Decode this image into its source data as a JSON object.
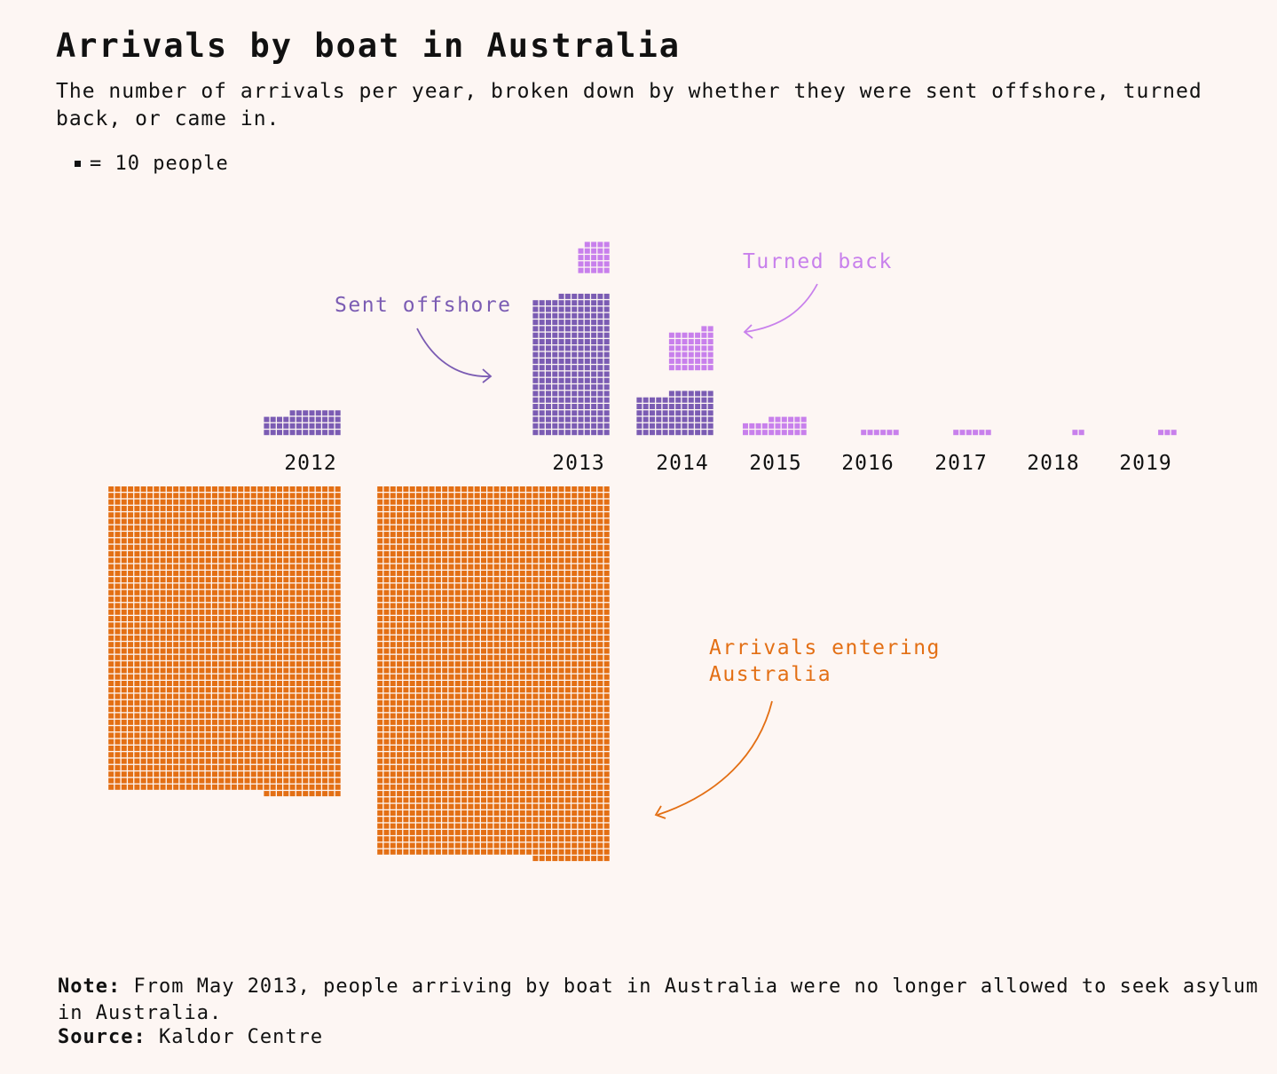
{
  "title": "Arrivals by boat in Australia",
  "subtitle": "The number of arrivals per year, broken down by whether they were sent offshore, turned back, or came in.",
  "legend": {
    "unit_label": "= 10 people"
  },
  "footer": {
    "note_label": "Note:",
    "note_text": "From May 2013, people arriving by boat in Australia were no longer allowed to seek asylum in Australia.",
    "source_label": "Source:",
    "source_text": "Kaldor Centre"
  },
  "colors": {
    "offshore": "#7b5cb3",
    "turned_back": "#c880ec",
    "entering": "#e36f14",
    "background": "#fdf6f3"
  },
  "chart_data": {
    "type": "waffle",
    "unit": 10,
    "unit_description": "people",
    "categories": [
      "2012",
      "2013",
      "2014",
      "2015",
      "2016",
      "2017",
      "2018",
      "2019"
    ],
    "series": [
      {
        "name": "Arrivals entering Australia",
        "key": "entering",
        "values": [
          17040,
          20640,
          0,
          0,
          0,
          0,
          0,
          0
        ]
      },
      {
        "name": "Sent offshore",
        "key": "offshore",
        "values": [
          440,
          2600,
          790,
          0,
          0,
          0,
          0,
          0
        ]
      },
      {
        "name": "Turned back",
        "key": "turned_back",
        "values": [
          0,
          240,
          440,
          260,
          60,
          60,
          20,
          30
        ]
      }
    ],
    "annotations": [
      {
        "text": "Sent offshore",
        "target": "2013 Sent offshore"
      },
      {
        "text": "Turned back",
        "target": "2014 Turned back"
      },
      {
        "text": "Arrivals entering Australia",
        "target": "2013 Arrivals entering Australia"
      }
    ]
  }
}
